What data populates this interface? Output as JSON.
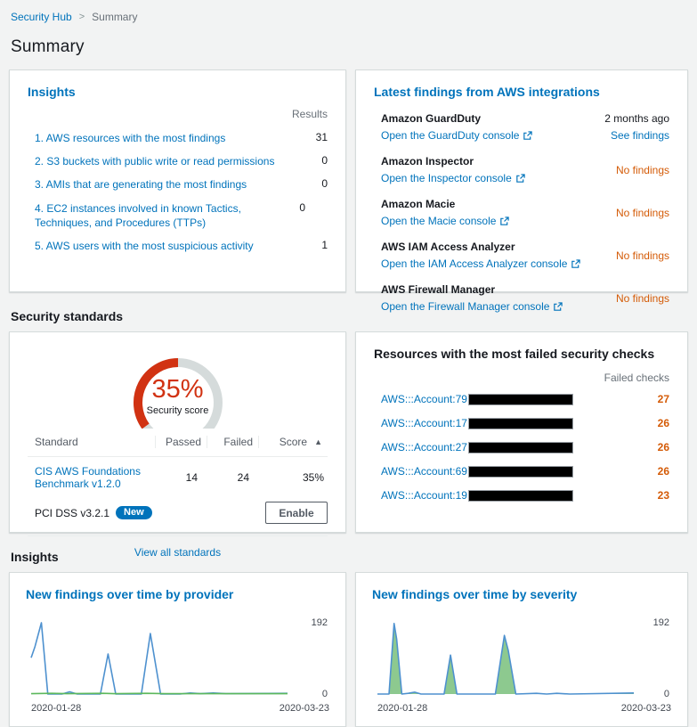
{
  "breadcrumb": {
    "items": [
      {
        "label": "Security Hub"
      },
      {
        "label": "Summary"
      }
    ],
    "separator": ">"
  },
  "page_title": "Summary",
  "colors": {
    "link_blue": "#0073bb",
    "warning_orange": "#d45b07",
    "gauge_red": "#d13212",
    "gauge_gray": "#d5dbdb",
    "chart_blue": "#4e91cf",
    "chart_green_fill": "#8dc98f",
    "chart_green_line": "#5cb85c"
  },
  "insights_card": {
    "title": "Insights",
    "results_header": "Results",
    "items": [
      {
        "label": "1. AWS resources with the most findings",
        "value": "31"
      },
      {
        "label": "2. S3 buckets with public write or read permissions",
        "value": "0"
      },
      {
        "label": "3. AMIs that are generating the most findings",
        "value": "0"
      },
      {
        "label": "4. EC2 instances involved in known Tactics, Techniques, and Procedures (TTPs)",
        "value": "0"
      },
      {
        "label": "5. AWS users with the most suspicious activity",
        "value": "1"
      }
    ]
  },
  "integrations_card": {
    "title": "Latest findings from AWS integrations",
    "items": [
      {
        "name": "Amazon GuardDuty",
        "link": "Open the GuardDuty console",
        "meta": "2 months ago",
        "action": "See findings",
        "status": ""
      },
      {
        "name": "Amazon Inspector",
        "link": "Open the Inspector console",
        "meta": "",
        "action": "",
        "status": "No findings"
      },
      {
        "name": "Amazon Macie",
        "link": "Open the Macie console",
        "meta": "",
        "action": "",
        "status": "No findings"
      },
      {
        "name": "AWS IAM Access Analyzer",
        "link": "Open the IAM Access Analyzer console",
        "meta": "",
        "action": "",
        "status": "No findings"
      },
      {
        "name": "AWS Firewall Manager",
        "link": "Open the Firewall Manager console",
        "meta": "",
        "action": "",
        "status": "No findings"
      }
    ]
  },
  "security_standards": {
    "section_title": "Security standards",
    "gauge": {
      "percent": 35,
      "label": "35%",
      "sublabel": "Security score"
    },
    "table": {
      "headers": {
        "standard": "Standard",
        "passed": "Passed",
        "failed": "Failed",
        "score": "Score"
      },
      "sort_icon": "▲",
      "rows": [
        {
          "standard": "CIS AWS Foundations Benchmark v1.2.0",
          "passed": "14",
          "failed": "24",
          "score": "35%"
        },
        {
          "standard": "PCI DSS v3.2.1",
          "badge": "New",
          "button_label": "Enable"
        }
      ]
    },
    "footer_link": "View all standards"
  },
  "failed_checks_card": {
    "title": "Resources with the most failed security checks",
    "column_header": "Failed checks",
    "rows": [
      {
        "resource": "AWS:::Account:79",
        "value": "27"
      },
      {
        "resource": "AWS:::Account:17",
        "value": "26"
      },
      {
        "resource": "AWS:::Account:27",
        "value": "26"
      },
      {
        "resource": "AWS:::Account:69",
        "value": "26"
      },
      {
        "resource": "AWS:::Account:19",
        "value": "23"
      }
    ]
  },
  "insights_section_title": "Insights",
  "chart_data": [
    {
      "type": "line",
      "title": "New findings over time by provider",
      "xlabel": "",
      "ylabel": "",
      "ylim": [
        0,
        192
      ],
      "grid": false,
      "legend": "none",
      "axis": {
        "x_start": "2020-01-28",
        "x_end": "2020-03-23",
        "y_max": "192",
        "y_min": "0"
      },
      "series": [
        {
          "name": "provider-findings",
          "color": "#4e91cf",
          "fill": null,
          "points": [
            [
              0,
              98
            ],
            [
              1.5,
              128
            ],
            [
              4,
              192
            ],
            [
              6.5,
              0
            ],
            [
              12,
              0
            ],
            [
              15,
              6
            ],
            [
              18,
              0
            ],
            [
              27,
              0
            ],
            [
              30,
              108
            ],
            [
              33,
              0
            ],
            [
              43,
              0
            ],
            [
              46.5,
              163
            ],
            [
              50.5,
              0
            ],
            [
              58,
              0
            ],
            [
              62,
              3
            ],
            [
              66,
              1
            ],
            [
              71,
              3
            ],
            [
              76,
              1
            ],
            [
              100,
              2
            ]
          ]
        },
        {
          "name": "provider-secondary",
          "color": "#5cb85c",
          "fill": null,
          "points": [
            [
              0,
              1
            ],
            [
              8,
              2
            ],
            [
              14,
              1
            ],
            [
              28,
              2
            ],
            [
              33,
              1
            ],
            [
              45,
              2
            ],
            [
              52,
              1
            ],
            [
              100,
              1
            ]
          ]
        }
      ]
    },
    {
      "type": "area",
      "title": "New findings over time by severity",
      "xlabel": "",
      "ylabel": "",
      "ylim": [
        0,
        192
      ],
      "grid": false,
      "legend": "none",
      "axis": {
        "x_start": "2020-01-28",
        "x_end": "2020-03-23",
        "y_max": "192",
        "y_min": "0"
      },
      "series": [
        {
          "name": "severity-findings",
          "color": "#4e91cf",
          "fill": "#8dc98f",
          "points": [
            [
              0,
              0
            ],
            [
              4.5,
              0
            ],
            [
              6.5,
              190
            ],
            [
              7.5,
              148
            ],
            [
              9.5,
              0
            ],
            [
              12,
              2
            ],
            [
              14.5,
              5
            ],
            [
              17,
              0
            ],
            [
              26,
              0
            ],
            [
              28.5,
              105
            ],
            [
              31,
              0
            ],
            [
              46,
              0
            ],
            [
              49.5,
              158
            ],
            [
              51,
              118
            ],
            [
              54,
              0
            ],
            [
              62,
              2
            ],
            [
              66,
              0
            ],
            [
              70,
              2
            ],
            [
              75,
              0
            ],
            [
              100,
              3
            ]
          ]
        }
      ]
    }
  ]
}
